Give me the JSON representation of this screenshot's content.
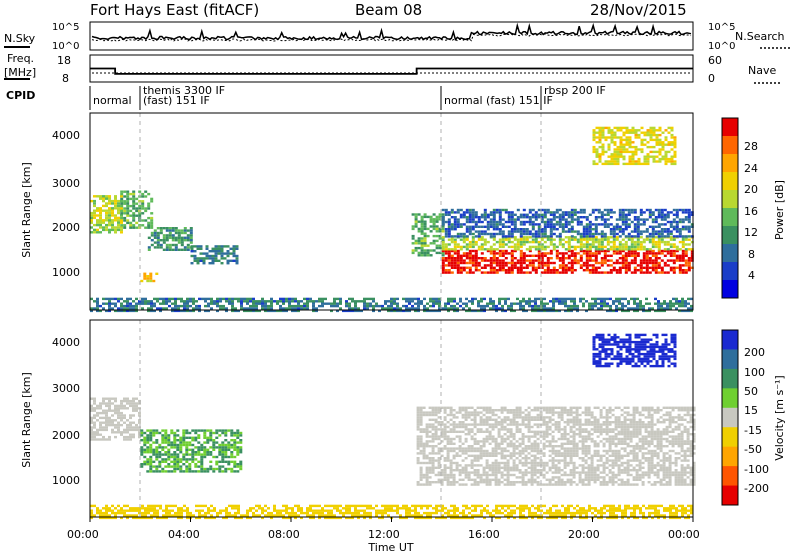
{
  "header": {
    "station": "Fort Hays East (fitACF)",
    "beam": "Beam 08",
    "date": "28/Nov/2015"
  },
  "top_panels": {
    "nsky_label": "N.Sky",
    "nsky_tick_hi": "10^5",
    "nsky_tick_lo": "10^0",
    "nsearch_label": "N.Search",
    "freq_label_1": "Freq.",
    "freq_label_2": "[MHz]",
    "freq_tick_hi": "18",
    "freq_tick_lo": "8",
    "nave_label": "Nave",
    "nave_tick_hi": "60",
    "nave_tick_lo": "0",
    "cpid_label": "CPID",
    "cpid_segments": [
      {
        "start_h": 0.0,
        "label": "normal"
      },
      {
        "start_h": 2.0,
        "label": "themis 3300 IF"
      },
      {
        "start_h": 2.0,
        "label": "(fast) 151 IF"
      },
      {
        "start_h": 14.0,
        "label": "normal (fast) 151 IF"
      },
      {
        "start_h": 18.0,
        "label": "rbsp 200 IF"
      }
    ]
  },
  "power_panel": {
    "ylabel": "Slant Range [km]",
    "colorbar_label": "Power [dB]",
    "colorbar_ticks": [
      "28",
      "24",
      "20",
      "16",
      "12",
      "8",
      "4"
    ],
    "colorbar_colors": [
      "#e60000",
      "#ff6600",
      "#ffa500",
      "#f0d000",
      "#b8d830",
      "#5fba5a",
      "#3a9060",
      "#2f6e9c",
      "#1a3ec8",
      "#0000e0"
    ]
  },
  "velocity_panel": {
    "ylabel": "Slant Range [km]",
    "colorbar_label": "Velocity [m s⁻¹]",
    "colorbar_ticks": [
      "200",
      "100",
      "50",
      "15",
      "-15",
      "-50",
      "-100",
      "-200"
    ],
    "colorbar_colors": [
      "#1a2ad0",
      "#2f6e9c",
      "#3a9060",
      "#6fcf30",
      "#c8c8c0",
      "#f0d000",
      "#ffa500",
      "#ff5500",
      "#e60000"
    ]
  },
  "axes": {
    "y_ticks": [
      "4000",
      "3000",
      "2000",
      "1000"
    ],
    "x_ticks": [
      "00:00",
      "04:00",
      "08:00",
      "12:00",
      "16:00",
      "20:00",
      "00:00"
    ],
    "xlabel": "Time UT"
  },
  "chart_data": {
    "type": "heatmap",
    "title": "Fort Hays East (fitACF) Beam 08 28/Nov/2015",
    "xlabel": "Time UT",
    "ylabel": "Slant Range [km]",
    "xlim_hours": [
      0,
      24
    ],
    "ylim_km": [
      180,
      4500
    ],
    "frequency_mhz_segments": [
      {
        "start_h": 0.0,
        "end_h": 1.0,
        "value": 13
      },
      {
        "start_h": 1.0,
        "end_h": 13.0,
        "value": 11
      },
      {
        "start_h": 13.0,
        "end_h": 24.0,
        "value": 13
      }
    ],
    "power_regions": [
      {
        "t0": 0.0,
        "t1": 1.2,
        "r0": 1900,
        "r1": 2700,
        "power_db": 18
      },
      {
        "t0": 1.2,
        "t1": 2.5,
        "r0": 2000,
        "r1": 2800,
        "power_db": 14
      },
      {
        "t0": 2.3,
        "t1": 4.0,
        "r0": 1500,
        "r1": 2000,
        "power_db": 12
      },
      {
        "t0": 4.0,
        "t1": 5.8,
        "r0": 1200,
        "r1": 1600,
        "power_db": 10
      },
      {
        "t0": 2.0,
        "t1": 2.7,
        "r0": 800,
        "r1": 1000,
        "power_db": 22
      },
      {
        "t0": 12.8,
        "t1": 14.0,
        "r0": 1400,
        "r1": 2300,
        "power_db": 14
      },
      {
        "t0": 14.0,
        "t1": 24.0,
        "r0": 1000,
        "r1": 1500,
        "power_db": 30
      },
      {
        "t0": 14.0,
        "t1": 24.0,
        "r0": 1500,
        "r1": 1800,
        "power_db": 18
      },
      {
        "t0": 14.0,
        "t1": 24.0,
        "r0": 1800,
        "r1": 2400,
        "power_db": 8
      },
      {
        "t0": 20.0,
        "t1": 23.3,
        "r0": 3400,
        "r1": 4200,
        "power_db": 20
      },
      {
        "t0": 0.0,
        "t1": 24.0,
        "r0": 180,
        "r1": 450,
        "power_db": 10
      }
    ],
    "velocity_regions": [
      {
        "t0": 0.0,
        "t1": 2.0,
        "r0": 1900,
        "r1": 2800,
        "velocity_ms": 0
      },
      {
        "t0": 2.0,
        "t1": 6.0,
        "r0": 1200,
        "r1": 2100,
        "velocity_ms": 30
      },
      {
        "t0": 13.0,
        "t1": 24.0,
        "r0": 900,
        "r1": 2600,
        "velocity_ms": 0
      },
      {
        "t0": 20.0,
        "t1": 23.3,
        "r0": 3500,
        "r1": 4200,
        "velocity_ms": 200
      },
      {
        "t0": 0.0,
        "t1": 24.0,
        "r0": 180,
        "r1": 450,
        "velocity_ms": -40
      }
    ]
  }
}
